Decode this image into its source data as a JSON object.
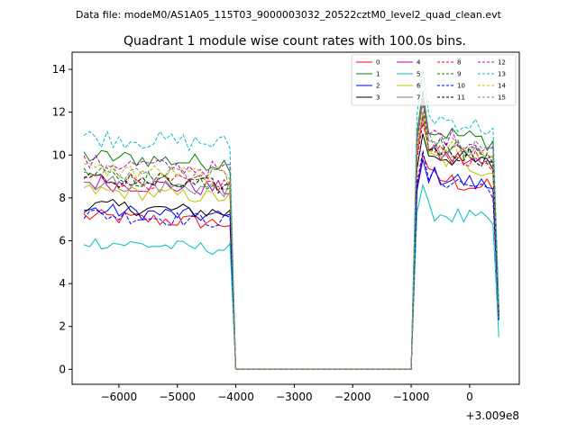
{
  "suptitle": "Data file: modeM0/AS1A05_115T03_9000003032_20522cztM0_level2_quad_clean.evt",
  "chart_data": {
    "type": "line",
    "title": "Quadrant 1 module wise count rates with 100.0s bins.",
    "xlabel": "",
    "ylabel": "",
    "x_offset_label": "+3.009e8",
    "xlim": [
      -6800,
      850
    ],
    "ylim": [
      -0.7,
      14.8
    ],
    "x_ticks": [
      -6000,
      -5000,
      -4000,
      -3000,
      -2000,
      -1000,
      0
    ],
    "x_tick_labels": [
      "−6000",
      "−5000",
      "−4000",
      "−3000",
      "−2000",
      "−1000",
      "0"
    ],
    "y_ticks": [
      0,
      2,
      4,
      6,
      8,
      10,
      12,
      14
    ],
    "y_tick_labels": [
      "0",
      "2",
      "4",
      "6",
      "8",
      "10",
      "12",
      "14"
    ],
    "grid": false,
    "legend_position": "top-right",
    "segments": {
      "seg1_start": -6600,
      "seg1_end": -4100,
      "drop_at": -4000,
      "gap_end": -1000,
      "seg2_start": -900,
      "seg2_end": 400,
      "last_x": 500,
      "step": 100
    },
    "series": [
      {
        "name": "0",
        "color": "#ff0000",
        "dash": "solid",
        "seg1_level": 6.8,
        "seg1_amp": 0.35,
        "seg2_level": 8.4,
        "seg2_peak": 10.0,
        "seg2_amp": 0.45,
        "end_value": 2.5
      },
      {
        "name": "1",
        "color": "#008000",
        "dash": "solid",
        "seg1_level": 9.6,
        "seg1_amp": 0.4,
        "seg2_level": 10.6,
        "seg2_peak": 13.0,
        "seg2_amp": 0.45,
        "end_value": 2.8
      },
      {
        "name": "2",
        "color": "#0000ff",
        "dash": "solid",
        "seg1_level": 7.1,
        "seg1_amp": 0.35,
        "seg2_level": 8.5,
        "seg2_peak": 9.8,
        "seg2_amp": 0.45,
        "end_value": 2.3
      },
      {
        "name": "3",
        "color": "#000000",
        "dash": "solid",
        "seg1_level": 7.3,
        "seg1_amp": 0.35,
        "seg2_level": 9.5,
        "seg2_peak": 11.0,
        "seg2_amp": 0.45,
        "end_value": 2.6
      },
      {
        "name": "4",
        "color": "#bf00bf",
        "dash": "solid",
        "seg1_level": 8.4,
        "seg1_amp": 0.4,
        "seg2_level": 9.5,
        "seg2_peak": 11.8,
        "seg2_amp": 0.45,
        "end_value": 2.5
      },
      {
        "name": "5",
        "color": "#00bfbf",
        "dash": "solid",
        "seg1_level": 5.6,
        "seg1_amp": 0.3,
        "seg2_level": 6.8,
        "seg2_peak": 8.6,
        "seg2_amp": 0.45,
        "end_value": 1.5
      },
      {
        "name": "6",
        "color": "#bfbf00",
        "dash": "solid",
        "seg1_level": 8.0,
        "seg1_amp": 0.35,
        "seg2_level": 9.3,
        "seg2_peak": 12.0,
        "seg2_amp": 0.45,
        "end_value": 2.5
      },
      {
        "name": "7",
        "color": "#808080",
        "dash": "solid",
        "seg1_level": 8.4,
        "seg1_amp": 0.4,
        "seg2_level": 9.8,
        "seg2_peak": 12.8,
        "seg2_amp": 0.45,
        "end_value": 2.6
      },
      {
        "name": "8",
        "color": "#ff0000",
        "dash": "dashed",
        "seg1_level": 8.6,
        "seg1_amp": 0.4,
        "seg2_level": 9.6,
        "seg2_peak": 11.5,
        "seg2_amp": 0.45,
        "end_value": 2.5
      },
      {
        "name": "9",
        "color": "#008000",
        "dash": "dashed",
        "seg1_level": 8.7,
        "seg1_amp": 0.4,
        "seg2_level": 10.0,
        "seg2_peak": 12.5,
        "seg2_amp": 0.45,
        "end_value": 2.6
      },
      {
        "name": "10",
        "color": "#0000ff",
        "dash": "dashed",
        "seg1_level": 6.9,
        "seg1_amp": 0.35,
        "seg2_level": 8.4,
        "seg2_peak": 10.2,
        "seg2_amp": 0.45,
        "end_value": 2.3
      },
      {
        "name": "11",
        "color": "#000000",
        "dash": "dashed",
        "seg1_level": 8.5,
        "seg1_amp": 0.4,
        "seg2_level": 9.8,
        "seg2_peak": 12.0,
        "seg2_amp": 0.45,
        "end_value": 2.6
      },
      {
        "name": "12",
        "color": "#bf00bf",
        "dash": "dashed",
        "seg1_level": 9.3,
        "seg1_amp": 0.4,
        "seg2_level": 10.4,
        "seg2_peak": 12.5,
        "seg2_amp": 0.45,
        "end_value": 2.7
      },
      {
        "name": "13",
        "color": "#00bfbf",
        "dash": "dashed",
        "seg1_level": 10.5,
        "seg1_amp": 0.45,
        "seg2_level": 11.2,
        "seg2_peak": 14.0,
        "seg2_amp": 0.45,
        "end_value": 3.0
      },
      {
        "name": "14",
        "color": "#bfbf00",
        "dash": "dashed",
        "seg1_level": 9.0,
        "seg1_amp": 0.4,
        "seg2_level": 9.9,
        "seg2_peak": 12.0,
        "seg2_amp": 0.45,
        "end_value": 2.6
      },
      {
        "name": "15",
        "color": "#808080",
        "dash": "dashed",
        "seg1_level": 8.9,
        "seg1_amp": 0.4,
        "seg2_level": 10.1,
        "seg2_peak": 12.6,
        "seg2_amp": 0.45,
        "end_value": 2.6
      }
    ]
  }
}
